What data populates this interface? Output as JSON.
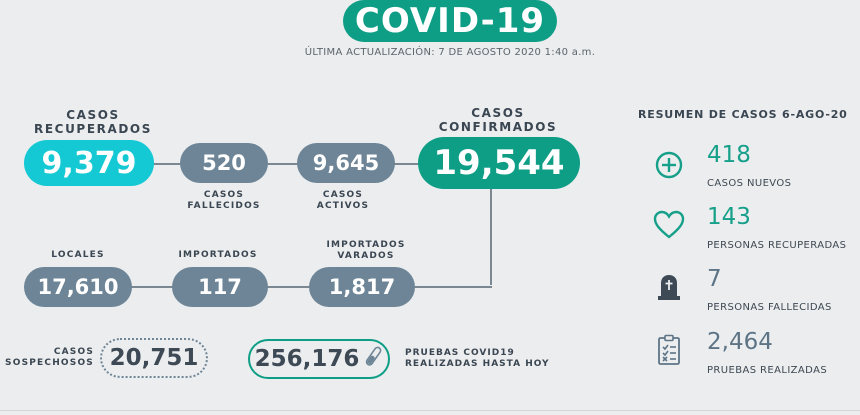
{
  "header": {
    "title": "COVID-19",
    "updated": "ÚLTIMA ACTUALIZACIÓN: 7 DE AGOSTO 2020 1:40 a.m."
  },
  "row1": {
    "recuperados": {
      "label_1": "CASOS",
      "label_2": "RECUPERADOS",
      "value": "9,379"
    },
    "fallecidos": {
      "value": "520",
      "label_1": "CASOS",
      "label_2": "FALLECIDOS"
    },
    "activos": {
      "value": "9,645",
      "label_1": "CASOS",
      "label_2": "ACTIVOS"
    },
    "confirmados": {
      "label_1": "CASOS",
      "label_2": "CONFIRMADOS",
      "value": "19,544"
    }
  },
  "row2": {
    "locales": {
      "label": "LOCALES",
      "value": "17,610"
    },
    "importados": {
      "label": "IMPORTADOS",
      "value": "117"
    },
    "varados": {
      "label_1": "IMPORTADOS",
      "label_2": "VARADOS",
      "value": "1,817"
    }
  },
  "row3": {
    "sospechosos": {
      "label_1": "CASOS",
      "label_2": "SOSPECHOSOS",
      "value": "20,751"
    },
    "pruebas": {
      "value": "256,176",
      "label_1": "PRUEBAS COVID19",
      "label_2": "REALIZADAS HASTA HOY"
    }
  },
  "summary": {
    "title": "RESUMEN DE CASOS 6-AGO-20",
    "items": [
      {
        "icon": "plus-circle-icon",
        "value": "418",
        "label": "CASOS NUEVOS"
      },
      {
        "icon": "heart-icon",
        "value": "143",
        "label": "PERSONAS RECUPERADAS"
      },
      {
        "icon": "tombstone-icon",
        "value": "7",
        "label": "PERSONAS FALLECIDAS"
      },
      {
        "icon": "clipboard-icon",
        "value": "2,464",
        "label": "PRUEBAS REALIZADAS"
      }
    ]
  },
  "colors": {
    "accent": "#0e9e86",
    "cyan": "#14c9d4",
    "slate": "#6d8596",
    "background": "#ecedef"
  }
}
